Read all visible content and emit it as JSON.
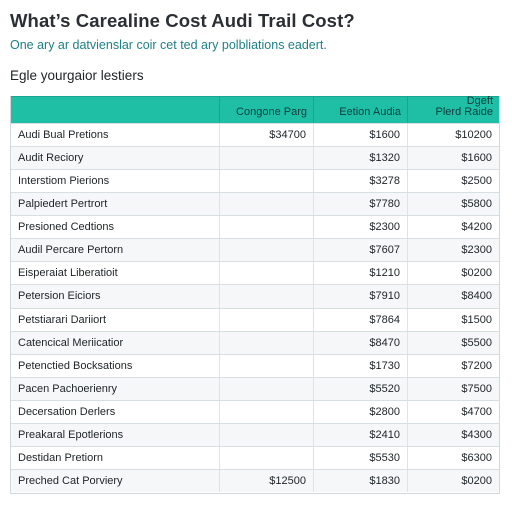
{
  "page": {
    "title": "What’s Carealine Cost Audi Trail Cost?",
    "subtitle": "One ary ar datvienslar coir cet ted ary polbliations eadert.",
    "section_heading": "Egle yourgaior lestiers"
  },
  "table": {
    "headers": [
      "",
      "Congone Parg",
      "Eetion Audia",
      "Dgeft\nPlerd Raide"
    ],
    "rows": [
      [
        "Audi Bual Pretions",
        "$34700",
        "$1600",
        "$10200"
      ],
      [
        "Audit Reciory",
        "",
        "$1320",
        "$1600"
      ],
      [
        "Interstiom Pierions",
        "",
        "$3278",
        "$2500"
      ],
      [
        "Palpiedert Pertrort",
        "",
        "$7780",
        "$5800"
      ],
      [
        "Presioned Cedtions",
        "",
        "$2300",
        "$4200"
      ],
      [
        "Audil Percare Pertorn",
        "",
        "$7607",
        "$2300"
      ],
      [
        "Eisperaiat Liberatioit",
        "",
        "$1210",
        "$0200"
      ],
      [
        "Petersion Eiciors",
        "",
        "$7910",
        "$8400"
      ],
      [
        "Petstiarari Dariiort",
        "",
        "$7864",
        "$1500"
      ],
      [
        "Catencical Meriicatior",
        "",
        "$8470",
        "$5500"
      ],
      [
        "Petenctied Bocksations",
        "",
        "$1730",
        "$7200"
      ],
      [
        "Pacen Pachoerienry",
        "",
        "$5520",
        "$7500"
      ],
      [
        "Decersation Derlers",
        "",
        "$2800",
        "$4700"
      ],
      [
        "Preakaral Epotlerions",
        "",
        "$2410",
        "$4300"
      ],
      [
        "Destidan Pretiorn",
        "",
        "$5530",
        "$6300"
      ],
      [
        "Preched Cat Porviery",
        "$12500",
        "$1830",
        "$0200"
      ]
    ]
  }
}
